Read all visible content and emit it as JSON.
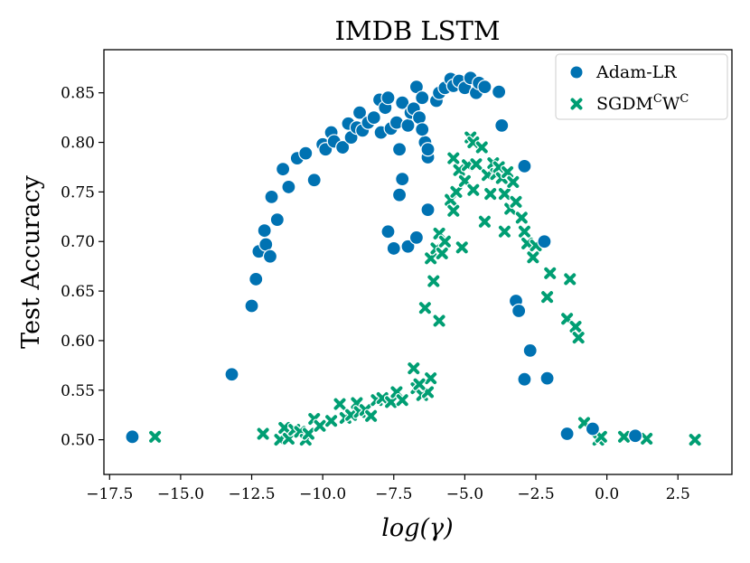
{
  "chart_data": {
    "type": "scatter",
    "title": "IMDB LSTM",
    "xlabel": "log(γ)",
    "ylabel": "Test Accuracy",
    "xlim": [
      -17.7,
      4.4
    ],
    "ylim": [
      0.465,
      0.8935
    ],
    "xticks": [
      -17.5,
      -15.0,
      -12.5,
      -10.0,
      -7.5,
      -5.0,
      -2.5,
      0.0,
      2.5
    ],
    "xtick_labels": [
      "−17.5",
      "−15.0",
      "−12.5",
      "−10.0",
      "−7.5",
      "−5.0",
      "−2.5",
      "0.0",
      "2.5"
    ],
    "yticks": [
      0.5,
      0.55,
      0.6,
      0.65,
      0.7,
      0.75,
      0.8,
      0.85
    ],
    "ytick_labels": [
      "0.50",
      "0.55",
      "0.60",
      "0.65",
      "0.70",
      "0.75",
      "0.80",
      "0.85"
    ],
    "grid": false,
    "legend_position": "top-right",
    "series": [
      {
        "name": "Adam-LR",
        "label_main": "Adam-LR",
        "label_parts": [],
        "marker": "circle",
        "color": "#0072B2",
        "points": [
          [
            -16.7,
            0.503
          ],
          [
            -13.2,
            0.566
          ],
          [
            -12.5,
            0.635
          ],
          [
            -12.35,
            0.662
          ],
          [
            -12.25,
            0.69
          ],
          [
            -12.0,
            0.697
          ],
          [
            -12.05,
            0.711
          ],
          [
            -11.85,
            0.685
          ],
          [
            -11.8,
            0.745
          ],
          [
            -11.6,
            0.722
          ],
          [
            -11.4,
            0.773
          ],
          [
            -11.2,
            0.755
          ],
          [
            -10.9,
            0.784
          ],
          [
            -10.6,
            0.789
          ],
          [
            -10.3,
            0.762
          ],
          [
            -10.0,
            0.798
          ],
          [
            -9.9,
            0.793
          ],
          [
            -9.7,
            0.81
          ],
          [
            -9.6,
            0.801
          ],
          [
            -9.3,
            0.795
          ],
          [
            -9.1,
            0.819
          ],
          [
            -9.0,
            0.805
          ],
          [
            -8.8,
            0.815
          ],
          [
            -8.7,
            0.83
          ],
          [
            -8.6,
            0.812
          ],
          [
            -8.4,
            0.82
          ],
          [
            -8.2,
            0.825
          ],
          [
            -8.0,
            0.843
          ],
          [
            -7.95,
            0.81
          ],
          [
            -7.8,
            0.835
          ],
          [
            -7.7,
            0.845
          ],
          [
            -7.6,
            0.814
          ],
          [
            -7.4,
            0.82
          ],
          [
            -7.3,
            0.793
          ],
          [
            -7.2,
            0.84
          ],
          [
            -7.0,
            0.817
          ],
          [
            -6.9,
            0.83
          ],
          [
            -6.8,
            0.834
          ],
          [
            -6.7,
            0.856
          ],
          [
            -6.6,
            0.825
          ],
          [
            -6.5,
            0.845
          ],
          [
            -6.4,
            0.8
          ],
          [
            -6.3,
            0.785
          ],
          [
            -6.0,
            0.842
          ],
          [
            -5.9,
            0.85
          ],
          [
            -5.7,
            0.855
          ],
          [
            -5.5,
            0.864
          ],
          [
            -5.4,
            0.857
          ],
          [
            -5.2,
            0.862
          ],
          [
            -5.0,
            0.855
          ],
          [
            -4.8,
            0.865
          ],
          [
            -4.6,
            0.85
          ],
          [
            -4.5,
            0.86
          ],
          [
            -4.3,
            0.856
          ],
          [
            -3.8,
            0.851
          ],
          [
            -3.7,
            0.817
          ],
          [
            -7.7,
            0.71
          ],
          [
            -7.5,
            0.693
          ],
          [
            -7.3,
            0.747
          ],
          [
            -7.2,
            0.763
          ],
          [
            -7.0,
            0.695
          ],
          [
            -6.7,
            0.704
          ],
          [
            -6.3,
            0.732
          ],
          [
            -6.5,
            0.813
          ],
          [
            -6.3,
            0.793
          ],
          [
            -2.9,
            0.776
          ],
          [
            -2.2,
            0.7
          ],
          [
            -3.2,
            0.64
          ],
          [
            -3.1,
            0.63
          ],
          [
            -2.7,
            0.59
          ],
          [
            -2.9,
            0.561
          ],
          [
            -2.1,
            0.562
          ],
          [
            -1.4,
            0.506
          ],
          [
            -0.5,
            0.511
          ],
          [
            1.0,
            0.504
          ]
        ]
      },
      {
        "name": "SGDM^C W^C",
        "label_main": "SGDM",
        "label_parts": [
          "C",
          "W",
          "C"
        ],
        "marker": "x",
        "color": "#009E73",
        "points": [
          [
            -15.9,
            0.503
          ],
          [
            -12.1,
            0.506
          ],
          [
            -11.5,
            0.5
          ],
          [
            -11.35,
            0.512
          ],
          [
            -11.2,
            0.501
          ],
          [
            -11.0,
            0.51
          ],
          [
            -10.8,
            0.508
          ],
          [
            -10.6,
            0.5
          ],
          [
            -10.5,
            0.506
          ],
          [
            -10.3,
            0.521
          ],
          [
            -10.1,
            0.514
          ],
          [
            -9.7,
            0.519
          ],
          [
            -9.4,
            0.536
          ],
          [
            -9.2,
            0.522
          ],
          [
            -9.0,
            0.525
          ],
          [
            -8.8,
            0.537
          ],
          [
            -8.7,
            0.528
          ],
          [
            -8.5,
            0.53
          ],
          [
            -8.3,
            0.524
          ],
          [
            -8.1,
            0.54
          ],
          [
            -7.9,
            0.542
          ],
          [
            -7.6,
            0.538
          ],
          [
            -7.4,
            0.548
          ],
          [
            -7.2,
            0.54
          ],
          [
            -6.8,
            0.572
          ],
          [
            -6.7,
            0.552
          ],
          [
            -6.5,
            0.545
          ],
          [
            -6.3,
            0.548
          ],
          [
            -6.2,
            0.562
          ],
          [
            -6.6,
            0.556
          ],
          [
            -6.4,
            0.633
          ],
          [
            -6.1,
            0.66
          ],
          [
            -5.9,
            0.62
          ],
          [
            -6.2,
            0.683
          ],
          [
            -6.0,
            0.693
          ],
          [
            -5.9,
            0.708
          ],
          [
            -5.8,
            0.688
          ],
          [
            -5.7,
            0.7
          ],
          [
            -5.5,
            0.742
          ],
          [
            -5.4,
            0.731
          ],
          [
            -5.3,
            0.75
          ],
          [
            -5.1,
            0.694
          ],
          [
            -5.4,
            0.784
          ],
          [
            -5.2,
            0.772
          ],
          [
            -5.0,
            0.761
          ],
          [
            -4.9,
            0.777
          ],
          [
            -4.8,
            0.805
          ],
          [
            -4.7,
            0.8
          ],
          [
            -4.6,
            0.778
          ],
          [
            -4.7,
            0.752
          ],
          [
            -4.4,
            0.795
          ],
          [
            -4.3,
            0.72
          ],
          [
            -4.2,
            0.767
          ],
          [
            -4.1,
            0.748
          ],
          [
            -4.0,
            0.779
          ],
          [
            -3.9,
            0.768
          ],
          [
            -3.8,
            0.775
          ],
          [
            -3.7,
            0.764
          ],
          [
            -3.6,
            0.748
          ],
          [
            -3.5,
            0.77
          ],
          [
            -3.4,
            0.733
          ],
          [
            -3.3,
            0.76
          ],
          [
            -3.2,
            0.74
          ],
          [
            -3.0,
            0.724
          ],
          [
            -2.9,
            0.71
          ],
          [
            -2.8,
            0.698
          ],
          [
            -2.6,
            0.684
          ],
          [
            -2.5,
            0.696
          ],
          [
            -3.6,
            0.71
          ],
          [
            -2.1,
            0.644
          ],
          [
            -2.0,
            0.668
          ],
          [
            -1.3,
            0.662
          ],
          [
            -1.4,
            0.622
          ],
          [
            -1.1,
            0.614
          ],
          [
            -1.0,
            0.603
          ],
          [
            -0.8,
            0.517
          ],
          [
            -0.3,
            0.5
          ],
          [
            -0.2,
            0.503
          ],
          [
            0.6,
            0.503
          ],
          [
            1.4,
            0.501
          ],
          [
            3.1,
            0.5
          ]
        ]
      }
    ]
  }
}
